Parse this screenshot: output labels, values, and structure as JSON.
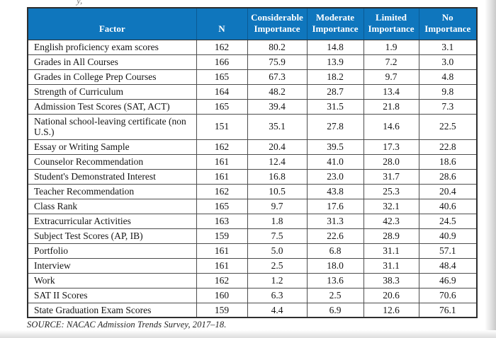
{
  "page": {
    "top_fragment": "y,",
    "source": "SOURCE: NACAC Admission Trends Survey, 2017–18."
  },
  "colors": {
    "header_bg": "#0f76bd",
    "header_text": "#ffffff",
    "grid_border": "#4d4d4d",
    "body_text": "#141414"
  },
  "table": {
    "columns": [
      "Factor",
      "N",
      "Considerable Importance",
      "Moderate Importance",
      "Limited Importance",
      "No Importance"
    ],
    "rows": [
      {
        "factor": "English proficiency exam scores",
        "n": "162",
        "considerable": "80.2",
        "moderate": "14.8",
        "limited": "1.9",
        "no": "3.1"
      },
      {
        "factor": "Grades in All Courses",
        "n": "166",
        "considerable": "75.9",
        "moderate": "13.9",
        "limited": "7.2",
        "no": "3.0"
      },
      {
        "factor": "Grades in College Prep Courses",
        "n": "165",
        "considerable": "67.3",
        "moderate": "18.2",
        "limited": "9.7",
        "no": "4.8"
      },
      {
        "factor": "Strength of Curriculum",
        "n": "164",
        "considerable": "48.2",
        "moderate": "28.7",
        "limited": "13.4",
        "no": "9.8"
      },
      {
        "factor": "Admission Test Scores (SAT, ACT)",
        "n": "165",
        "considerable": "39.4",
        "moderate": "31.5",
        "limited": "21.8",
        "no": "7.3"
      },
      {
        "factor": "National school-leaving certificate (non U.S.)",
        "n": "151",
        "considerable": "35.1",
        "moderate": "27.8",
        "limited": "14.6",
        "no": "22.5"
      },
      {
        "factor": "Essay or Writing Sample",
        "n": "162",
        "considerable": "20.4",
        "moderate": "39.5",
        "limited": "17.3",
        "no": "22.8"
      },
      {
        "factor": "Counselor Recommendation",
        "n": "161",
        "considerable": "12.4",
        "moderate": "41.0",
        "limited": "28.0",
        "no": "18.6"
      },
      {
        "factor": "Student's Demonstrated Interest",
        "n": "161",
        "considerable": "16.8",
        "moderate": "23.0",
        "limited": "31.7",
        "no": "28.6"
      },
      {
        "factor": "Teacher Recommendation",
        "n": "162",
        "considerable": "10.5",
        "moderate": "43.8",
        "limited": "25.3",
        "no": "20.4"
      },
      {
        "factor": "Class Rank",
        "n": "165",
        "considerable": "9.7",
        "moderate": "17.6",
        "limited": "32.1",
        "no": "40.6"
      },
      {
        "factor": "Extracurricular Activities",
        "n": "163",
        "considerable": "1.8",
        "moderate": "31.3",
        "limited": "42.3",
        "no": "24.5"
      },
      {
        "factor": "Subject Test Scores (AP, IB)",
        "n": "159",
        "considerable": "7.5",
        "moderate": "22.6",
        "limited": "28.9",
        "no": "40.9"
      },
      {
        "factor": "Portfolio",
        "n": "161",
        "considerable": "5.0",
        "moderate": "6.8",
        "limited": "31.1",
        "no": "57.1"
      },
      {
        "factor": "Interview",
        "n": "161",
        "considerable": "2.5",
        "moderate": "18.0",
        "limited": "31.1",
        "no": "48.4"
      },
      {
        "factor": "Work",
        "n": "162",
        "considerable": "1.2",
        "moderate": "13.6",
        "limited": "38.3",
        "no": "46.9"
      },
      {
        "factor": "SAT II Scores",
        "n": "160",
        "considerable": "6.3",
        "moderate": "2.5",
        "limited": "20.6",
        "no": "70.6"
      },
      {
        "factor": "State Graduation Exam Scores",
        "n": "159",
        "considerable": "4.4",
        "moderate": "6.9",
        "limited": "12.6",
        "no": "76.1"
      }
    ]
  }
}
